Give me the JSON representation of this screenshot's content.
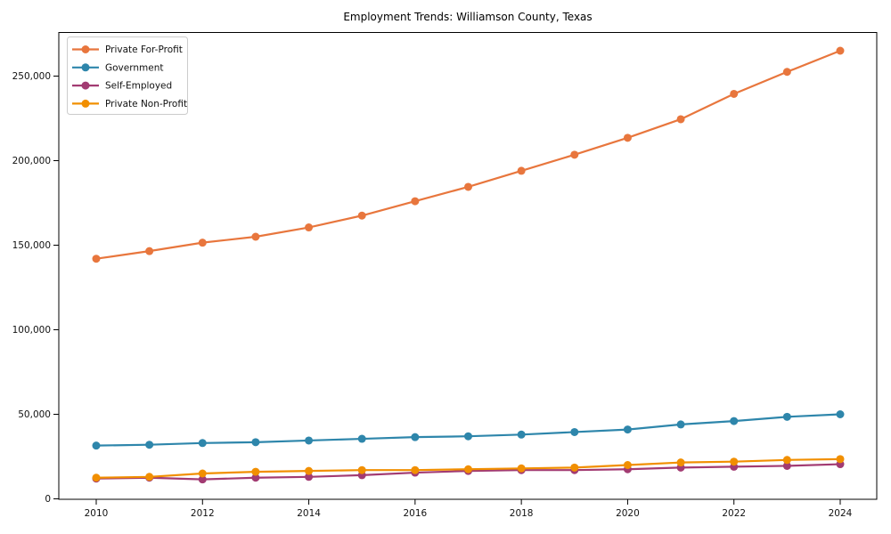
{
  "chart_data": {
    "type": "line",
    "title": "Employment Trends: Williamson County, Texas",
    "xlabel": "",
    "ylabel": "",
    "x": [
      2010,
      2011,
      2012,
      2013,
      2014,
      2015,
      2016,
      2017,
      2018,
      2019,
      2020,
      2021,
      2022,
      2023,
      2024
    ],
    "xtick_labels": [
      "2010",
      "2012",
      "2014",
      "2016",
      "2018",
      "2020",
      "2022",
      "2024"
    ],
    "xticks": [
      2010,
      2012,
      2014,
      2016,
      2018,
      2020,
      2022,
      2024
    ],
    "yticks": [
      0,
      50000,
      100000,
      150000,
      200000,
      250000
    ],
    "ytick_labels": [
      "0",
      "50,000",
      "100,000",
      "150,000",
      "200,000",
      "250,000"
    ],
    "ylim": [
      0,
      275000
    ],
    "xlim": [
      2009.35,
      2024.65
    ],
    "grid": false,
    "legend_position": "upper-left",
    "series": [
      {
        "name": "Private For-Profit",
        "color": "#E8763D",
        "values": [
          142000,
          146500,
          151500,
          155000,
          160500,
          167500,
          176000,
          184500,
          194000,
          203500,
          213500,
          224500,
          239500,
          252500,
          265000
        ]
      },
      {
        "name": "Government",
        "color": "#2E86AB",
        "values": [
          31500,
          32000,
          33000,
          33500,
          34500,
          35500,
          36500,
          37000,
          38000,
          39500,
          41000,
          44000,
          46000,
          48500,
          50000
        ]
      },
      {
        "name": "Self-Employed",
        "color": "#A23B72",
        "values": [
          12000,
          12500,
          11500,
          12500,
          13000,
          14000,
          15500,
          16500,
          17000,
          17000,
          17500,
          18500,
          19000,
          19500,
          20500
        ]
      },
      {
        "name": "Private Non-Profit",
        "color": "#F18F01",
        "values": [
          12500,
          13000,
          15000,
          16000,
          16500,
          17000,
          17000,
          17500,
          18000,
          18500,
          20000,
          21500,
          22000,
          23000,
          23500
        ]
      }
    ]
  }
}
